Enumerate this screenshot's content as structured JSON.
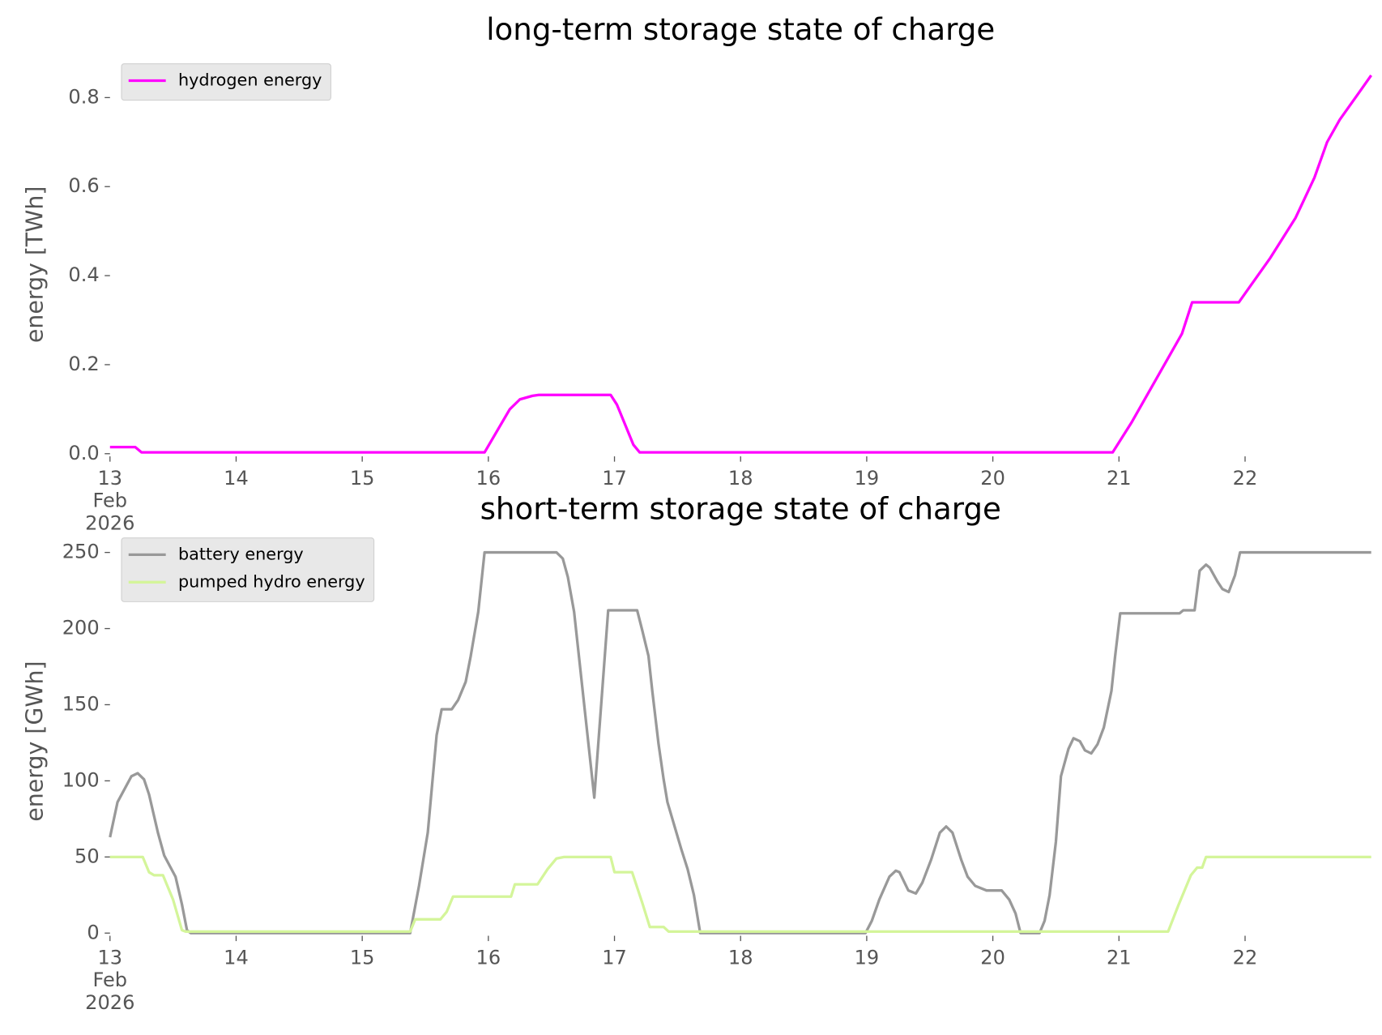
{
  "chart_data": [
    {
      "type": "line",
      "title": "long-term storage state of charge",
      "y_label": "energy [TWh]",
      "xlim": [
        13,
        23
      ],
      "ylim": [
        0,
        0.85
      ],
      "xticks": [
        {
          "value": 13,
          "label": "13\nFeb\n2026"
        },
        14,
        15,
        16,
        17,
        18,
        19,
        20,
        21,
        22
      ],
      "yticks": [
        {
          "value": 0,
          "label": "0.0"
        },
        0.2,
        0.4,
        0.6,
        0.8
      ],
      "legend": "upper left",
      "grid": false,
      "series": [
        {
          "name": "hydrogen energy",
          "color": "#ff00ff",
          "x": [
            13,
            13.2,
            13.25,
            15.97,
            16.17,
            16.25,
            16.35,
            16.4,
            16.97,
            17.02,
            17.15,
            17.2,
            20.95,
            21.1,
            21.3,
            21.5,
            21.58,
            21.95,
            22.0,
            22.2,
            22.4,
            22.55,
            22.65,
            22.75,
            22.9,
            23
          ],
          "values": [
            0.015,
            0.015,
            0.003,
            0.003,
            0.1,
            0.122,
            0.13,
            0.132,
            0.132,
            0.11,
            0.02,
            0.003,
            0.003,
            0.07,
            0.17,
            0.27,
            0.34,
            0.34,
            0.36,
            0.44,
            0.53,
            0.62,
            0.7,
            0.75,
            0.81,
            0.85
          ]
        }
      ]
    },
    {
      "type": "line",
      "title": "short-term storage state of charge",
      "y_label": "energy [GWh]",
      "xlim": [
        13,
        23
      ],
      "ylim": [
        0,
        252
      ],
      "xticks": [
        {
          "value": 13,
          "label": "13\nFeb\n2026"
        },
        14,
        15,
        16,
        17,
        18,
        19,
        20,
        21,
        22
      ],
      "yticks": [
        0,
        50,
        100,
        150,
        200,
        250
      ],
      "legend": "upper left",
      "grid": false,
      "series": [
        {
          "name": "battery energy",
          "color": "#999999",
          "x": [
            13,
            13.06,
            13.17,
            13.22,
            13.27,
            13.31,
            13.38,
            13.43,
            13.52,
            13.57,
            13.61,
            13.64,
            15.38,
            15.45,
            15.52,
            15.59,
            15.63,
            15.71,
            15.76,
            15.82,
            15.86,
            15.92,
            15.97,
            16.54,
            16.59,
            16.63,
            16.68,
            16.84,
            16.95,
            17.18,
            17.22,
            17.27,
            17.3,
            17.35,
            17.39,
            17.42,
            17.48,
            17.53,
            17.58,
            17.63,
            17.68,
            18.99,
            19.04,
            19.1,
            19.18,
            19.23,
            19.26,
            19.33,
            19.39,
            19.44,
            19.51,
            19.58,
            19.63,
            19.68,
            19.75,
            19.8,
            19.86,
            19.95,
            20.07,
            20.13,
            20.18,
            20.22,
            20.37,
            20.41,
            20.45,
            20.5,
            20.54,
            20.6,
            20.64,
            20.69,
            20.73,
            20.78,
            20.83,
            20.88,
            20.94,
            20.97,
            21.01,
            21.48,
            21.51,
            21.6,
            21.64,
            21.69,
            21.72,
            21.78,
            21.82,
            21.87,
            21.92,
            21.96,
            23
          ],
          "values": [
            63,
            86,
            103,
            105,
            101,
            91,
            66,
            51,
            37,
            19,
            2,
            0,
            0,
            31,
            66,
            130,
            147,
            147,
            153,
            165,
            182,
            211,
            250,
            250,
            246,
            234,
            211,
            89,
            212,
            212,
            199,
            182,
            159,
            124,
            101,
            86,
            69,
            55,
            42,
            25,
            0,
            0,
            8,
            22,
            37,
            41,
            40,
            28,
            26,
            33,
            48,
            66,
            70,
            66,
            48,
            37,
            31,
            28,
            28,
            22,
            13,
            0,
            0,
            8,
            25,
            60,
            103,
            121,
            128,
            126,
            120,
            118,
            124,
            135,
            159,
            182,
            210,
            210,
            212,
            212,
            238,
            242,
            240,
            231,
            226,
            224,
            235,
            250,
            250
          ]
        },
        {
          "name": "pumped hydro energy",
          "color": "#d4f59a",
          "x": [
            13,
            13.26,
            13.31,
            13.35,
            13.42,
            13.5,
            13.57,
            13.6,
            15.38,
            15.42,
            15.62,
            15.67,
            15.72,
            16.18,
            16.21,
            16.39,
            16.47,
            16.54,
            16.6,
            16.97,
            17.0,
            17.14,
            17.22,
            17.28,
            17.39,
            17.43,
            21.39,
            21.47,
            21.57,
            21.62,
            21.66,
            21.69,
            23
          ],
          "values": [
            50,
            50,
            40,
            38,
            38,
            22,
            2,
            1,
            1,
            9,
            9,
            14,
            24,
            24,
            32,
            32,
            42,
            49,
            50,
            50,
            40,
            40,
            20,
            4,
            4,
            1,
            1,
            18,
            38,
            43,
            43,
            50,
            50
          ]
        }
      ]
    }
  ]
}
